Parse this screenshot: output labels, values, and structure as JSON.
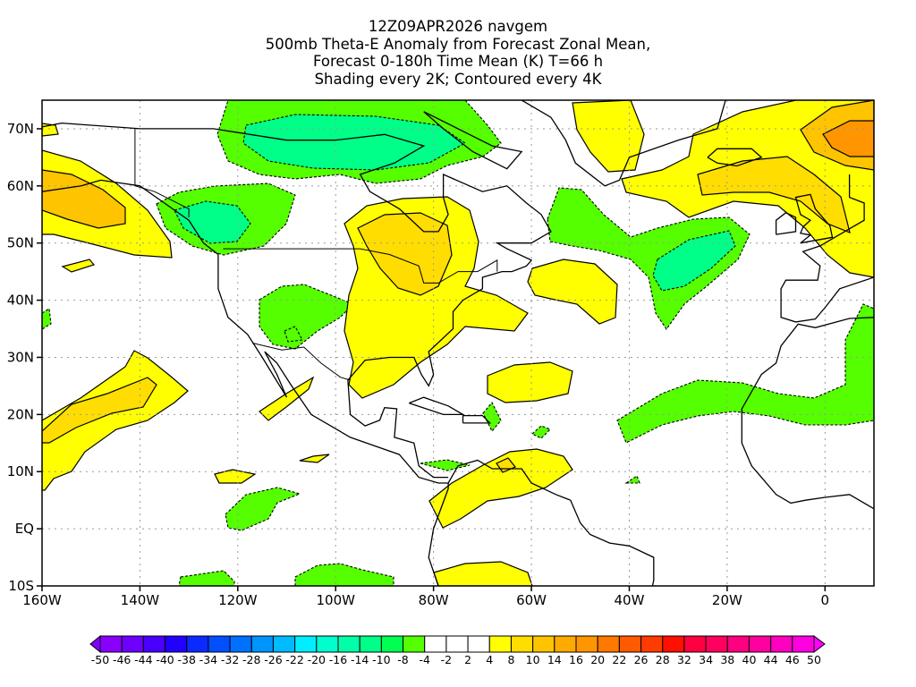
{
  "title": {
    "line1": "12Z09APR2026 navgem",
    "line2": "500mb Theta-E Anomaly from Forecast Zonal Mean,",
    "line3": "Forecast 0-180h Time Mean (K) T=66 h",
    "line4": "Shading every 2K; Contoured every 4K"
  },
  "map": {
    "lon_range": [
      -160,
      10
    ],
    "lat_range": [
      -10,
      75
    ],
    "x_ticks": [
      {
        "value": -160,
        "label": "160W"
      },
      {
        "value": -140,
        "label": "140W"
      },
      {
        "value": -120,
        "label": "120W"
      },
      {
        "value": -100,
        "label": "100W"
      },
      {
        "value": -80,
        "label": "80W"
      },
      {
        "value": -60,
        "label": "60W"
      },
      {
        "value": -40,
        "label": "40W"
      },
      {
        "value": -20,
        "label": "20W"
      },
      {
        "value": 0,
        "label": "0"
      }
    ],
    "y_ticks": [
      {
        "value": 70,
        "label": "70N"
      },
      {
        "value": 60,
        "label": "60N"
      },
      {
        "value": 50,
        "label": "50N"
      },
      {
        "value": 40,
        "label": "40N"
      },
      {
        "value": 30,
        "label": "30N"
      },
      {
        "value": 20,
        "label": "20N"
      },
      {
        "value": 10,
        "label": "10N"
      },
      {
        "value": 0,
        "label": "EQ"
      },
      {
        "value": -10,
        "label": "10S"
      }
    ]
  },
  "colorbar": {
    "labels": [
      "-50",
      "-46",
      "-44",
      "-40",
      "-38",
      "-34",
      "-32",
      "-28",
      "-26",
      "-22",
      "-20",
      "-16",
      "-14",
      "-10",
      "-8",
      "-4",
      "-2",
      "2",
      "4",
      "8",
      "10",
      "14",
      "16",
      "20",
      "22",
      "26",
      "28",
      "32",
      "34",
      "38",
      "40",
      "44",
      "46",
      "50"
    ],
    "colors": [
      "#8a00ff",
      "#6e00ff",
      "#4a00ff",
      "#2200ff",
      "#0a2aff",
      "#0050ff",
      "#0070ff",
      "#0094ff",
      "#00bbff",
      "#00eeff",
      "#00ffcc",
      "#00ffa8",
      "#00ff88",
      "#00ff50",
      "#55ff00",
      "#ffffff",
      "#ffffff",
      "#ffffff",
      "#ffff00",
      "#ffdd00",
      "#ffc400",
      "#ffaa00",
      "#ff9600",
      "#ff7800",
      "#ff5a00",
      "#ff3c00",
      "#ff1000",
      "#ff0040",
      "#ff0060",
      "#ff0080",
      "#ff00a0",
      "#ff00c0",
      "#ff00e0"
    ],
    "low_color": "#8000ff",
    "high_color": "#ff00ff"
  }
}
